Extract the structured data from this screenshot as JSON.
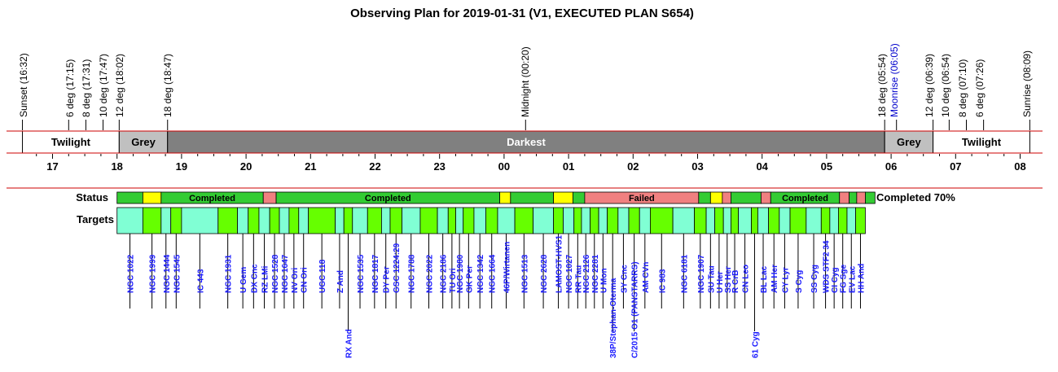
{
  "title": "Observing Plan for 2019-01-31 (V1, EXECUTED PLAN S654)",
  "row_labels": {
    "status": "Status",
    "targets": "Targets"
  },
  "summary": "Completed 70%",
  "colors": {
    "completed": "#33cc33",
    "yellow": "#ffff00",
    "failed": "#f08080",
    "target_a": "#80ffd4",
    "target_b": "#66ff00",
    "twilight": "#ffffff",
    "grey": "#c0c0c0",
    "darkest": "#808080",
    "redline": "#cc0000",
    "target_text": "#1a1aff",
    "moon_text": "#0000cc"
  },
  "chart_data": {
    "type": "timeline",
    "date": "2019-01-31",
    "time_range_hours": [
      16.45,
      8.3
    ],
    "tick_labels": [
      "17",
      "18",
      "19",
      "20",
      "21",
      "22",
      "23",
      "00",
      "01",
      "02",
      "03",
      "04",
      "05",
      "06",
      "07",
      "08"
    ],
    "events": [
      {
        "label": "Sunset (16:32)",
        "time": "16:32"
      },
      {
        "label": "6 deg (17:15)",
        "time": "17:15"
      },
      {
        "label": "8 deg (17:31)",
        "time": "17:31"
      },
      {
        "label": "10 deg (17:47)",
        "time": "17:47"
      },
      {
        "label": "12 deg (18:02)",
        "time": "18:02"
      },
      {
        "label": "18 deg (18:47)",
        "time": "18:47"
      },
      {
        "label": "Midnight (00:20)",
        "time": "00:20"
      },
      {
        "label": "18 deg (05:54)",
        "time": "05:54"
      },
      {
        "label": "Moonrise (06:05)",
        "time": "06:05",
        "moon": true
      },
      {
        "label": "12 deg (06:39)",
        "time": "06:39"
      },
      {
        "label": "10 deg (06:54)",
        "time": "06:54"
      },
      {
        "label": "8 deg (07:10)",
        "time": "07:10"
      },
      {
        "label": "6 deg (07:26)",
        "time": "07:26"
      },
      {
        "label": "Sunrise (08:09)",
        "time": "08:09"
      }
    ],
    "sky_bands": [
      {
        "label": "Twilight",
        "start": "16:32",
        "end": "18:02",
        "kind": "twilight"
      },
      {
        "label": "Grey",
        "start": "18:02",
        "end": "18:47",
        "kind": "grey"
      },
      {
        "label": "Darkest",
        "start": "18:47",
        "end": "05:54",
        "kind": "darkest"
      },
      {
        "label": "Grey",
        "start": "05:54",
        "end": "06:39",
        "kind": "grey"
      },
      {
        "label": "Twilight",
        "start": "06:39",
        "end": "08:09",
        "kind": "twilight"
      }
    ],
    "status_segments": [
      {
        "start": "18:00",
        "end": "18:24",
        "state": "completed",
        "label": ""
      },
      {
        "start": "18:24",
        "end": "18:41",
        "state": "yellow",
        "label": ""
      },
      {
        "start": "18:41",
        "end": "20:16",
        "state": "completed",
        "label": "Completed"
      },
      {
        "start": "20:16",
        "end": "20:28",
        "state": "failed",
        "label": ""
      },
      {
        "start": "20:28",
        "end": "23:56",
        "state": "completed",
        "label": "Completed"
      },
      {
        "start": "23:56",
        "end": "00:06",
        "state": "yellow",
        "label": ""
      },
      {
        "start": "00:06",
        "end": "00:46",
        "state": "completed",
        "label": ""
      },
      {
        "start": "00:46",
        "end": "01:04",
        "state": "yellow",
        "label": ""
      },
      {
        "start": "01:04",
        "end": "01:15",
        "state": "completed",
        "label": ""
      },
      {
        "start": "01:15",
        "end": "03:01",
        "state": "failed",
        "label": "Failed"
      },
      {
        "start": "03:01",
        "end": "03:12",
        "state": "completed",
        "label": ""
      },
      {
        "start": "03:12",
        "end": "03:23",
        "state": "yellow",
        "label": ""
      },
      {
        "start": "03:23",
        "end": "03:31",
        "state": "failed",
        "label": ""
      },
      {
        "start": "03:31",
        "end": "03:59",
        "state": "completed",
        "label": ""
      },
      {
        "start": "03:59",
        "end": "04:08",
        "state": "failed",
        "label": ""
      },
      {
        "start": "04:08",
        "end": "05:12",
        "state": "completed",
        "label": "Completed"
      },
      {
        "start": "05:12",
        "end": "05:21",
        "state": "failed",
        "label": ""
      },
      {
        "start": "05:21",
        "end": "05:28",
        "state": "completed",
        "label": ""
      },
      {
        "start": "05:28",
        "end": "05:36",
        "state": "failed",
        "label": ""
      },
      {
        "start": "05:36",
        "end": "05:45",
        "state": "completed",
        "label": ""
      }
    ],
    "targets": [
      {
        "name": "NGC 1022",
        "start": "18:00",
        "end": "18:24"
      },
      {
        "name": "NGC 1999",
        "start": "18:24",
        "end": "18:41"
      },
      {
        "name": "NGC 1444",
        "start": "18:41",
        "end": "18:50"
      },
      {
        "name": "NGC 1545",
        "start": "18:50",
        "end": "19:00"
      },
      {
        "name": "IC 443",
        "start": "19:00",
        "end": "19:34"
      },
      {
        "name": "NGC 1931",
        "start": "19:34",
        "end": "19:52"
      },
      {
        "name": "U Gem",
        "start": "19:52",
        "end": "20:02"
      },
      {
        "name": "DX Cnc",
        "start": "20:02",
        "end": "20:12"
      },
      {
        "name": "RZ LMi",
        "start": "20:12",
        "end": "20:22"
      },
      {
        "name": "NGC 1528",
        "start": "20:22",
        "end": "20:31"
      },
      {
        "name": "NGC 1647",
        "start": "20:31",
        "end": "20:40"
      },
      {
        "name": "NV Ori",
        "start": "20:40",
        "end": "20:49"
      },
      {
        "name": "CN Ori",
        "start": "20:49",
        "end": "20:58"
      },
      {
        "name": "UGC 118",
        "start": "20:58",
        "end": "21:23"
      },
      {
        "name": "Z And",
        "start": "21:23",
        "end": "21:31"
      },
      {
        "name": "RX And",
        "start": "21:31",
        "end": "21:39"
      },
      {
        "name": "NGC 1535",
        "start": "21:39",
        "end": "21:53"
      },
      {
        "name": "NGC 1817",
        "start": "21:53",
        "end": "22:06"
      },
      {
        "name": "DY Per",
        "start": "22:06",
        "end": "22:14"
      },
      {
        "name": "GSC 1224:29",
        "start": "22:14",
        "end": "22:25"
      },
      {
        "name": "NGC 1788",
        "start": "22:25",
        "end": "22:42"
      },
      {
        "name": "NGC 2022",
        "start": "22:42",
        "end": "22:58"
      },
      {
        "name": "NGC 2186",
        "start": "22:58",
        "end": "23:08"
      },
      {
        "name": "TU Ori",
        "start": "23:08",
        "end": "23:15"
      },
      {
        "name": "NGC 1980",
        "start": "23:15",
        "end": "23:22"
      },
      {
        "name": "GK Per",
        "start": "23:22",
        "end": "23:32"
      },
      {
        "name": "NGC 1342",
        "start": "23:32",
        "end": "23:43"
      },
      {
        "name": "NGC 1664",
        "start": "23:43",
        "end": "23:54"
      },
      {
        "name": "46P/Wirtanen",
        "start": "23:54",
        "end": "00:10"
      },
      {
        "name": "NGC 1513",
        "start": "00:10",
        "end": "00:27"
      },
      {
        "name": "NGC 2628",
        "start": "00:27",
        "end": "00:46"
      },
      {
        "name": "LAMOST-HVS1",
        "start": "00:46",
        "end": "00:55"
      },
      {
        "name": "NGC 1027",
        "start": "00:55",
        "end": "01:05"
      },
      {
        "name": "RR Tau",
        "start": "01:05",
        "end": "01:12"
      },
      {
        "name": "NGC 2126",
        "start": "01:12",
        "end": "01:20"
      },
      {
        "name": "NGC 2281",
        "start": "01:20",
        "end": "01:28"
      },
      {
        "name": "U Mon",
        "start": "01:28",
        "end": "01:36"
      },
      {
        "name": "38P/Stephan-Oterma",
        "start": "01:36",
        "end": "01:46"
      },
      {
        "name": "SY Cnc",
        "start": "01:46",
        "end": "01:56"
      },
      {
        "name": "C/2015 O1 (PANSTARRS)",
        "start": "01:56",
        "end": "02:06"
      },
      {
        "name": "AM CVn",
        "start": "02:06",
        "end": "02:16"
      },
      {
        "name": "IC 983",
        "start": "02:16",
        "end": "02:37"
      },
      {
        "name": "NGC 6181",
        "start": "02:37",
        "end": "02:57"
      },
      {
        "name": "NGC 1907",
        "start": "02:57",
        "end": "03:08"
      },
      {
        "name": "SU Tau",
        "start": "03:08",
        "end": "03:16"
      },
      {
        "name": "U Her",
        "start": "03:16",
        "end": "03:24"
      },
      {
        "name": "SS Her",
        "start": "03:24",
        "end": "03:31"
      },
      {
        "name": "R CrB",
        "start": "03:31",
        "end": "03:38"
      },
      {
        "name": "CN Leo",
        "start": "03:38",
        "end": "03:50"
      },
      {
        "name": "61 Cyg",
        "start": "03:50",
        "end": "03:56"
      },
      {
        "name": "BL Lac",
        "start": "03:56",
        "end": "04:06"
      },
      {
        "name": "AM Her",
        "start": "04:06",
        "end": "04:16"
      },
      {
        "name": "CY Lyr",
        "start": "04:16",
        "end": "04:26"
      },
      {
        "name": "S Cyg",
        "start": "04:26",
        "end": "04:41"
      },
      {
        "name": "SS Cyg",
        "start": "04:41",
        "end": "04:55"
      },
      {
        "name": "WDS STF2 34",
        "start": "04:55",
        "end": "05:03"
      },
      {
        "name": "CI Cyg",
        "start": "05:03",
        "end": "05:11"
      },
      {
        "name": "FG Sge",
        "start": "05:11",
        "end": "05:19"
      },
      {
        "name": "EV Lac",
        "start": "05:19",
        "end": "05:27"
      },
      {
        "name": "HH And",
        "start": "05:27",
        "end": "05:36"
      }
    ],
    "low_labels": [
      "RX And",
      "38P/Stephan-Oterma",
      "C/2015 O1 (PANSTARRS)",
      "61 Cyg"
    ],
    "status_summary": "Completed 70%"
  }
}
